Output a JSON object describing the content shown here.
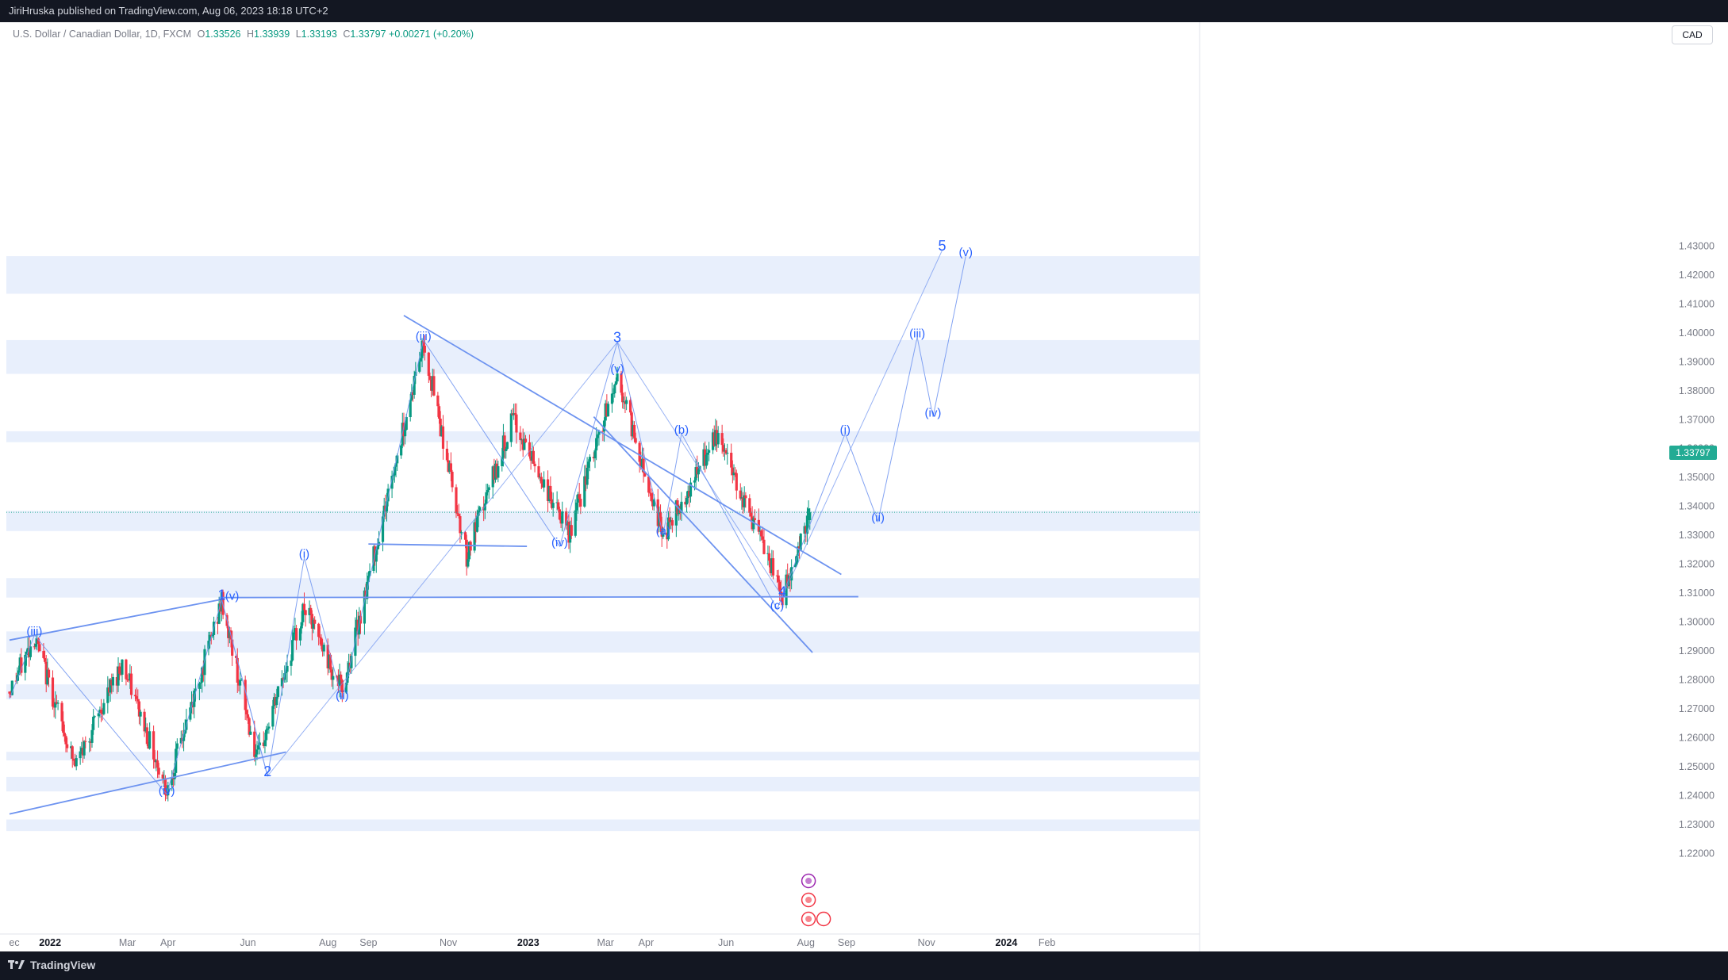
{
  "header": {
    "published_text": "JiriHruska published on TradingView.com, Aug 06, 2023 18:18 UTC+2"
  },
  "legend": {
    "symbol": "U.S. Dollar / Canadian Dollar, 1D, FXCM",
    "open_label": "O",
    "open": "1.33526",
    "high_label": "H",
    "high": "1.33939",
    "low_label": "L",
    "low": "1.33193",
    "close_label": "C",
    "close": "1.33797",
    "change": "+0.00271 (+0.20%)"
  },
  "currency_button": "CAD",
  "last_price_tag": "1.33797",
  "footer": {
    "brand": "TradingView"
  },
  "colors": {
    "up": "#089981",
    "down": "#f23645",
    "wave": "#6d93f0",
    "wave_text": "#2962ff",
    "zone": "#e8effc",
    "price_tag": "#22ab94"
  },
  "chart_data": {
    "type": "candlestick",
    "symbol": "USDCAD",
    "timeframe": "1D",
    "x_ticks": [
      "ec",
      "2022",
      "Mar",
      "Apr",
      "Jun",
      "Aug",
      "Sep",
      "Nov",
      "2023",
      "Mar",
      "Apr",
      "Jun",
      "Aug",
      "Sep",
      "Nov",
      "2024",
      "Feb"
    ],
    "y_ticks": [
      "1.43000",
      "1.42000",
      "1.41000",
      "1.40000",
      "1.39000",
      "1.38000",
      "1.37000",
      "1.36000",
      "1.35000",
      "1.34000",
      "1.33000",
      "1.32000",
      "1.31000",
      "1.30000",
      "1.29000",
      "1.28000",
      "1.27000",
      "1.26000",
      "1.25000",
      "1.24000",
      "1.23000",
      "1.22000"
    ],
    "ylim": [
      1.218,
      1.4395
    ],
    "last_close": 1.33797,
    "approx_close_path": [
      {
        "date": "2021-12-01",
        "close": 1.276
      },
      {
        "date": "2021-12-20",
        "close": 1.295
      },
      {
        "date": "2022-01-20",
        "close": 1.25
      },
      {
        "date": "2022-02-25",
        "close": 1.286
      },
      {
        "date": "2022-03-31",
        "close": 1.242
      },
      {
        "date": "2022-05-12",
        "close": 1.307
      },
      {
        "date": "2022-06-08",
        "close": 1.252
      },
      {
        "date": "2022-07-14",
        "close": 1.305
      },
      {
        "date": "2022-08-12",
        "close": 1.276
      },
      {
        "date": "2022-10-13",
        "close": 1.397
      },
      {
        "date": "2022-11-15",
        "close": 1.323
      },
      {
        "date": "2022-12-20",
        "close": 1.37
      },
      {
        "date": "2023-02-01",
        "close": 1.33
      },
      {
        "date": "2023-03-10",
        "close": 1.385
      },
      {
        "date": "2023-04-14",
        "close": 1.33
      },
      {
        "date": "2023-05-26",
        "close": 1.365
      },
      {
        "date": "2023-07-14",
        "close": 1.309
      },
      {
        "date": "2023-08-04",
        "close": 1.33797
      }
    ],
    "zones": [
      {
        "low": 1.4135,
        "high": 1.4265
      },
      {
        "low": 1.3858,
        "high": 1.3975
      },
      {
        "low": 1.3622,
        "high": 1.366
      },
      {
        "low": 1.3315,
        "high": 1.3385
      },
      {
        "low": 1.3085,
        "high": 1.3152
      },
      {
        "low": 1.2895,
        "high": 1.2968
      },
      {
        "low": 1.2733,
        "high": 1.2785
      },
      {
        "low": 1.2522,
        "high": 1.2552
      },
      {
        "low": 1.2415,
        "high": 1.2465
      },
      {
        "low": 1.2278,
        "high": 1.2318
      }
    ],
    "wave_labels": [
      {
        "text": "(iii)",
        "date": "2021-12-20",
        "price": 1.2955
      },
      {
        "text": "(iv)",
        "date": "2022-03-31",
        "price": 1.2405
      },
      {
        "text": "1",
        "date": "2022-05-12",
        "price": 1.3077
      },
      {
        "text": "(v)",
        "date": "2022-05-20",
        "price": 1.3077
      },
      {
        "text": "2",
        "date": "2022-06-16",
        "price": 1.2468
      },
      {
        "text": "(i)",
        "date": "2022-07-14",
        "price": 1.3222
      },
      {
        "text": "(ii)",
        "date": "2022-08-12",
        "price": 1.2733
      },
      {
        "text": "(iii)",
        "date": "2022-10-13",
        "price": 1.3975
      },
      {
        "text": "(iv)",
        "date": "2023-01-25",
        "price": 1.3262
      },
      {
        "text": "3",
        "date": "2023-03-10",
        "price": 1.3968
      },
      {
        "text": "(v)",
        "date": "2023-03-10",
        "price": 1.3862
      },
      {
        "text": "(a)",
        "date": "2023-04-14",
        "price": 1.3302
      },
      {
        "text": "(b)",
        "date": "2023-04-28",
        "price": 1.3652
      },
      {
        "text": "(c)",
        "date": "2023-07-10",
        "price": 1.3045
      },
      {
        "text": "4",
        "date": "2023-07-14",
        "price": 1.3088
      },
      {
        "text": "(i)",
        "date": "2023-08-31",
        "price": 1.3652
      },
      {
        "text": "(ii)",
        "date": "2023-09-25",
        "price": 1.3348
      },
      {
        "text": "(iii)",
        "date": "2023-10-25",
        "price": 1.3985
      },
      {
        "text": "(iv)",
        "date": "2023-11-06",
        "price": 1.371
      },
      {
        "text": "5",
        "date": "2023-11-13",
        "price": 1.4285
      },
      {
        "text": "(v)",
        "date": "2023-12-01",
        "price": 1.4265
      }
    ],
    "grid": false,
    "legend_position": "top-left"
  }
}
